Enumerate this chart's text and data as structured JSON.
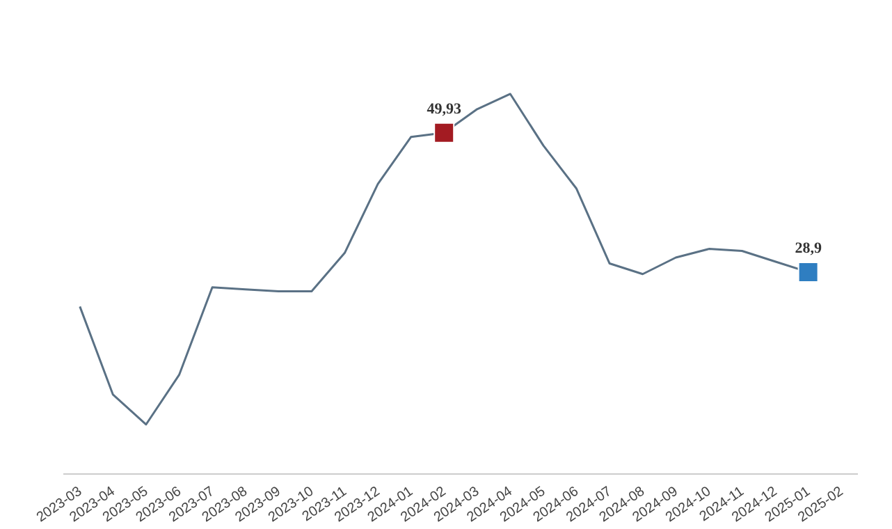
{
  "chart_data": {
    "type": "line",
    "categories": [
      "2023-03",
      "2023-04",
      "2023-05",
      "2023-06",
      "2023-07",
      "2023-08",
      "2023-09",
      "2023-10",
      "2023-11",
      "2023-12",
      "2024-01",
      "2024-02",
      "2024-03",
      "2024-04",
      "2024-05",
      "2024-06",
      "2024-07",
      "2024-08",
      "2024-09",
      "2024-10",
      "2024-11",
      "2024-12",
      "2025-01",
      "2025-02"
    ],
    "series": [
      {
        "color": "#5a7185",
        "values": [
          23.7,
          10.4,
          5.9,
          13.4,
          26.6,
          26.3,
          26.0,
          26.0,
          31.8,
          42.2,
          49.3,
          49.93,
          53.5,
          55.8,
          48.0,
          41.5,
          30.2,
          28.6,
          31.1,
          32.4,
          32.1,
          30.5,
          28.9,
          null
        ],
        "colors": [
          null,
          null,
          null,
          null,
          null,
          null,
          null,
          null,
          null,
          null,
          null,
          "#a31b22",
          null,
          null,
          null,
          null,
          null,
          null,
          null,
          null,
          null,
          null,
          "#2f7ec1",
          null
        ],
        "value_labels": [
          null,
          null,
          null,
          null,
          null,
          null,
          null,
          null,
          null,
          null,
          null,
          "49,93",
          null,
          null,
          null,
          null,
          null,
          null,
          null,
          null,
          null,
          null,
          "28,9",
          null
        ]
      }
    ]
  }
}
